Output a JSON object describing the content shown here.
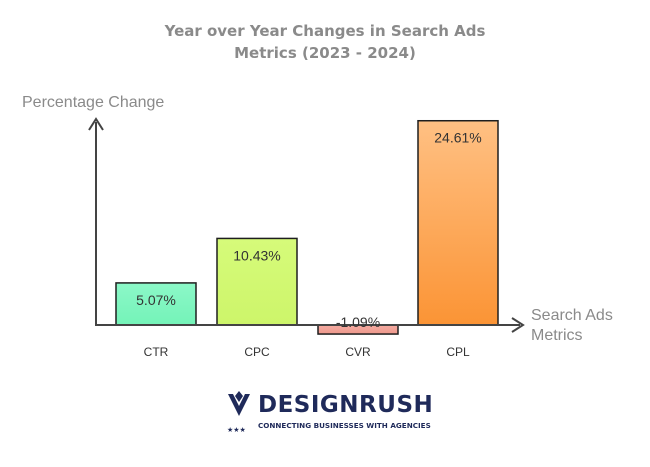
{
  "chart_data": {
    "type": "bar",
    "title_lines": [
      "Year over Year Changes in Search Ads",
      "Metrics (2023 - 2024)"
    ],
    "ylabel": "Percentage Change",
    "xlabel_lines": [
      "Search Ads",
      "Metrics"
    ],
    "categories": [
      "CTR",
      "CPC",
      "CVR",
      "CPL"
    ],
    "values": [
      5.07,
      10.43,
      -1.09,
      24.61
    ],
    "labels": [
      "5.07%",
      "10.43%",
      "-1.09%",
      "24.61%"
    ],
    "colors": [
      "#7ff7c0",
      "#d8f97a",
      "#f2a49a",
      "#fb9a43"
    ],
    "ylim": [
      -1.5,
      26
    ],
    "grid": false,
    "legend": "none"
  },
  "brand": {
    "name": "DESIGNRUSH",
    "tagline": "CONNECTING BUSINESSES WITH AGENCIES"
  }
}
